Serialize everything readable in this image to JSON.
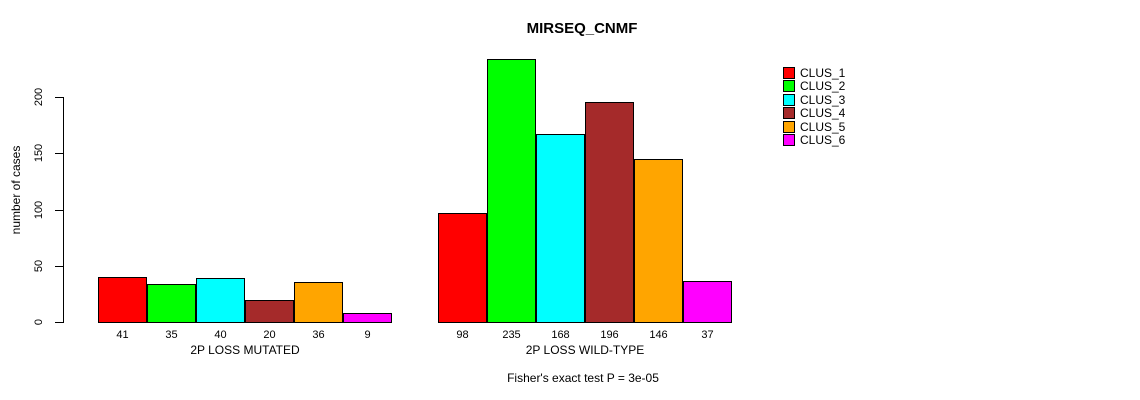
{
  "chart_data": {
    "type": "bar",
    "title": "MIRSEQ_CNMF",
    "xlabel": "",
    "ylabel": "number of cases",
    "ylim": [
      0,
      235
    ],
    "yticks": [
      0,
      50,
      100,
      150,
      200
    ],
    "grid": false,
    "legend_position": "right-outside",
    "categories": [
      "CLUS_1",
      "CLUS_2",
      "CLUS_3",
      "CLUS_4",
      "CLUS_5",
      "CLUS_6"
    ],
    "colors": [
      "#FF0000",
      "#00FF00",
      "#00FFFF",
      "#A52A2A",
      "#FFA500",
      "#FF00FF"
    ],
    "groups": [
      {
        "label": "2P LOSS MUTATED",
        "values": [
          41,
          35,
          40,
          20,
          36,
          9
        ]
      },
      {
        "label": "2P LOSS WILD-TYPE",
        "values": [
          98,
          235,
          168,
          196,
          146,
          37
        ]
      }
    ],
    "annotation": "Fisher's exact test P = 3e-05"
  }
}
